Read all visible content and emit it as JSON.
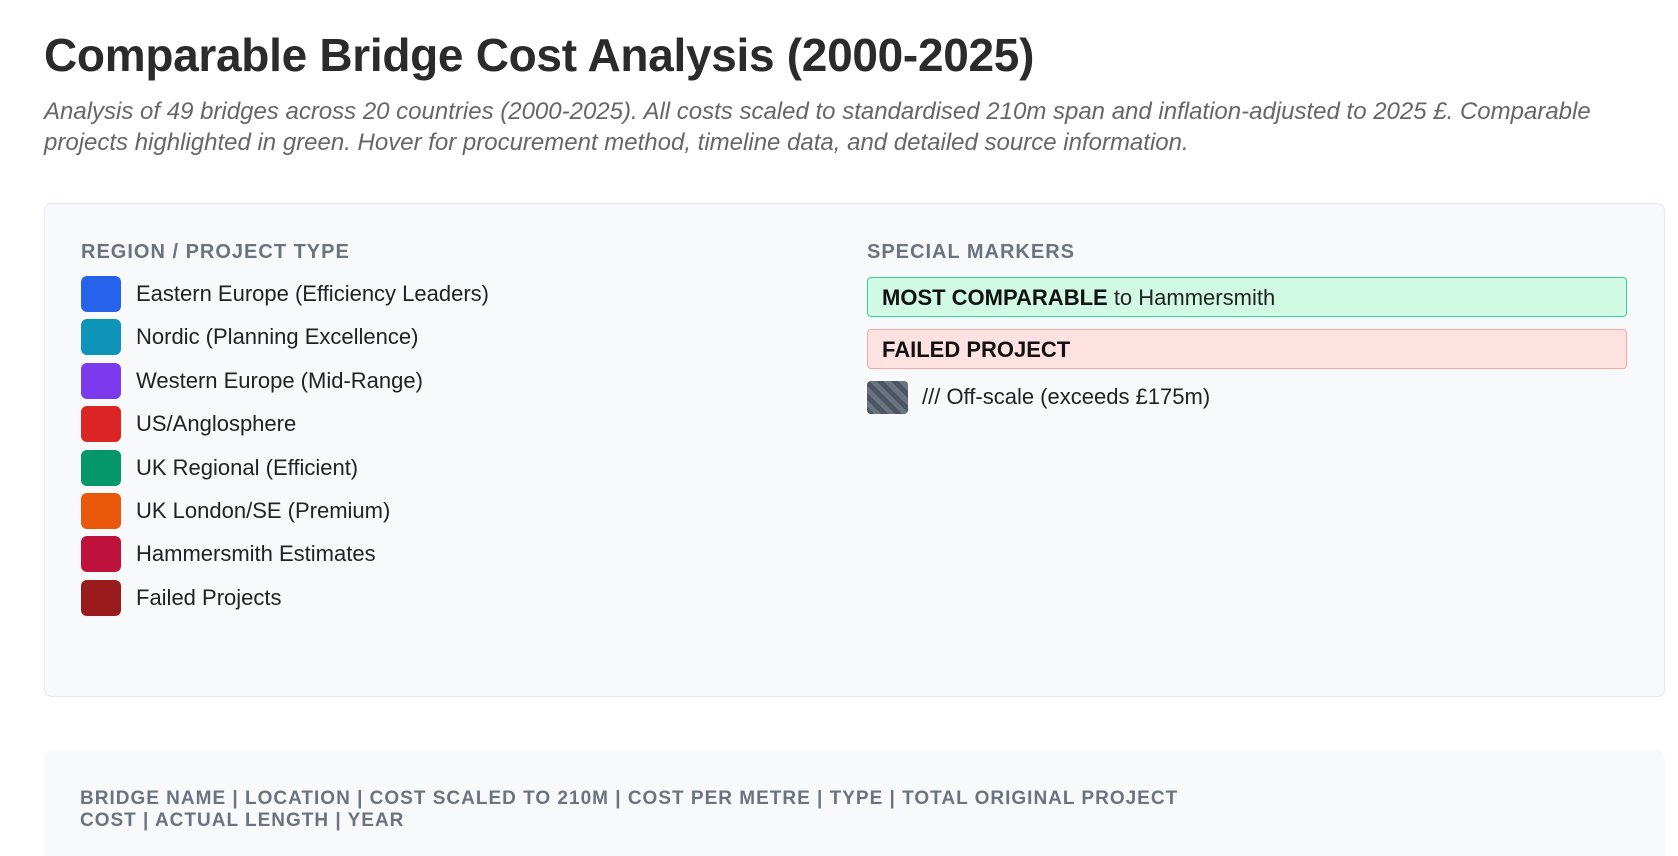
{
  "title": "Comparable Bridge Cost Analysis (2000-2025)",
  "subtitle": "Analysis of 49 bridges across 20 countries (2000-2025). All costs scaled to standardised 210m span and inflation-adjusted to 2025 £. Comparable projects highlighted in green. Hover for procurement method, timeline data, and detailed source information.",
  "legend": {
    "region_title": "REGION / PROJECT TYPE",
    "regions": [
      {
        "label": "Eastern Europe (Efficiency Leaders)",
        "color": "#2563eb"
      },
      {
        "label": "Nordic (Planning Excellence)",
        "color": "#0e94b8"
      },
      {
        "label": "Western Europe (Mid-Range)",
        "color": "#7c3aed"
      },
      {
        "label": "US/Anglosphere",
        "color": "#dc2626"
      },
      {
        "label": "UK Regional (Efficient)",
        "color": "#059669"
      },
      {
        "label": "UK London/SE (Premium)",
        "color": "#ea580c"
      },
      {
        "label": "Hammersmith Estimates",
        "color": "#be123c"
      },
      {
        "label": "Failed Projects",
        "color": "#991b1b"
      }
    ],
    "markers_title": "SPECIAL MARKERS",
    "comparable_marker": {
      "bold": "MOST COMPARABLE",
      "rest": " to Hammersmith",
      "color": "#d1fae5"
    },
    "failed_marker": {
      "bold": "FAILED PROJECT",
      "color": "#fee2e2"
    },
    "offscale_label": "/// Off-scale (exceeds £175m)"
  },
  "table": {
    "header": "BRIDGE NAME | LOCATION | COST SCALED TO 210M | COST PER METRE | TYPE | TOTAL ORIGINAL PROJECT COST | ACTUAL LENGTH | YEAR"
  }
}
